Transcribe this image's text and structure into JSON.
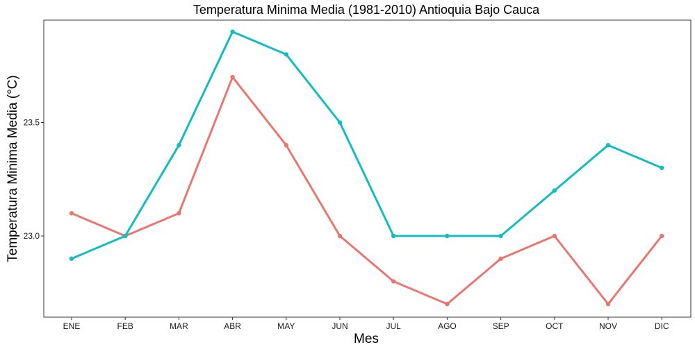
{
  "chart_data": {
    "type": "line",
    "title": "Temperatura Minima Media (1981-2010)  Antioquia Bajo Cauca",
    "xlabel": "Mes",
    "ylabel": "Temperatura Minima Media  (°C)",
    "categories": [
      "ENE",
      "FEB",
      "MAR",
      "ABR",
      "MAY",
      "JUN",
      "JUL",
      "AGO",
      "SEP",
      "OCT",
      "NOV",
      "DIC"
    ],
    "yticks": [
      "23.0",
      "23.5"
    ],
    "ylim": [
      22.75,
      23.92
    ],
    "grid": false,
    "legend": "none",
    "series": [
      {
        "color": "#E8776F",
        "values": [
          23.1,
          23.0,
          23.1,
          23.7,
          23.4,
          23.0,
          22.8,
          22.7,
          22.9,
          23.0,
          22.7,
          23.0
        ]
      },
      {
        "color": "#12BCC0",
        "values": [
          22.9,
          23.0,
          23.4,
          23.9,
          23.8,
          23.5,
          23.0,
          23.0,
          23.0,
          23.2,
          23.4,
          23.3
        ]
      }
    ]
  }
}
